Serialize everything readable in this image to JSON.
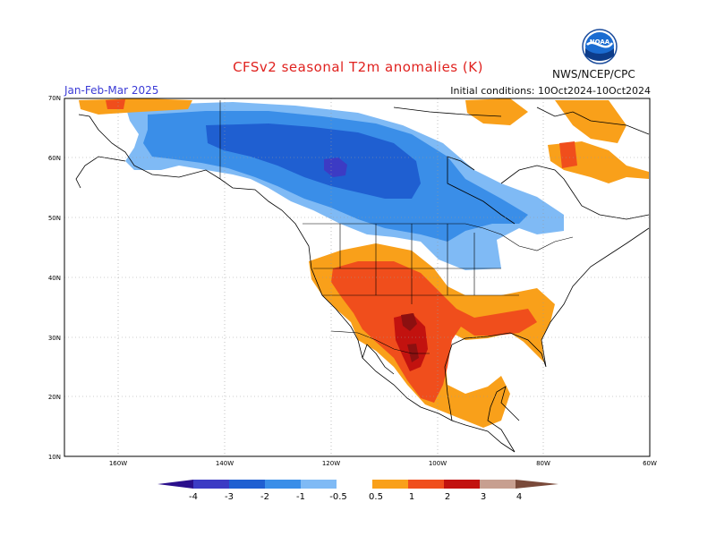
{
  "header": {
    "title": "CFSv2 seasonal T2m anomalies (K)",
    "period": "Jan-Feb-Mar 2025",
    "initial_conditions": "Initial conditions: 10Oct2024-10Oct2024",
    "agency": "NWS/NCEP/CPC",
    "logo_text": "NOAA"
  },
  "axes": {
    "lat_labels": [
      "70N",
      "60N",
      "50N",
      "40N",
      "30N",
      "20N",
      "10N"
    ],
    "lon_labels": [
      "160W",
      "140W",
      "120W",
      "100W",
      "80W",
      "60W"
    ]
  },
  "colorbar": {
    "labels": [
      "-4",
      "-3",
      "-2",
      "-1",
      "-0.5",
      "0.5",
      "1",
      "2",
      "3",
      "4"
    ],
    "colors": {
      "lt_-4": "#2a0f8c",
      "-4_-3": "#3c3bc4",
      "-3_-2": "#1f5fd1",
      "-2_-1": "#3a8ee8",
      "-1_-0.5": "#7fbaf5",
      "-0.5_0.5": "#ffffff",
      "0.5_1": "#f9a01a",
      "1_2": "#f04e1c",
      "2_3": "#c2120f",
      "3_4": "#8c1010",
      "4_5": "#c79f90",
      "gt_5": "#7a4a3a"
    }
  }
}
